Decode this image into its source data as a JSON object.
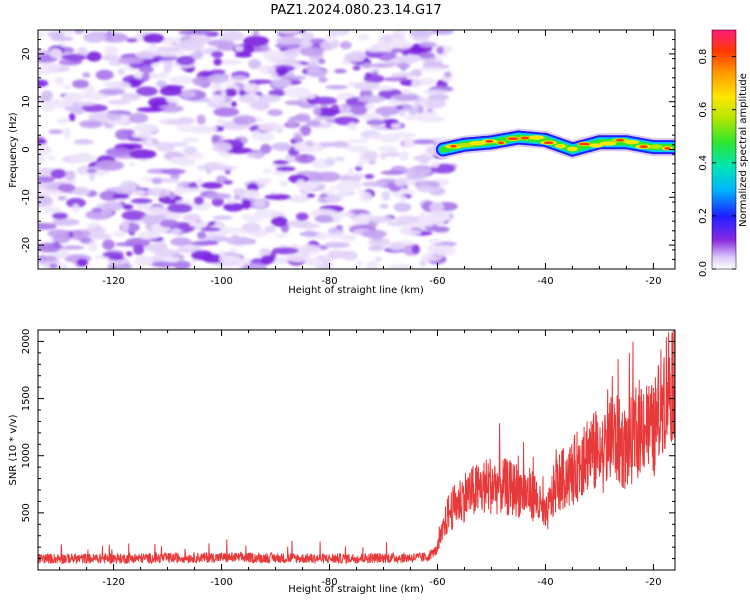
{
  "title": "PAZ1.2024.080.23.14.G17",
  "chart_data": [
    {
      "type": "heatmap",
      "xlabel": "Height of straight line (km)",
      "ylabel": "Frequency (Hz)",
      "xlim": [
        -134,
        -16
      ],
      "ylim": [
        -25,
        25
      ],
      "xticks": [
        -120,
        -100,
        -80,
        -60,
        -40,
        -20
      ],
      "yticks": [
        -20,
        -10,
        0,
        10,
        20
      ],
      "colorbar": {
        "label": "Normalized spectral amplitude",
        "range": [
          0.0,
          0.9
        ],
        "ticks": [
          0.0,
          0.2,
          0.4,
          0.6,
          0.8
        ]
      },
      "signal_track": {
        "description_points_x": [
          -59,
          -55,
          -50,
          -45,
          -40,
          -35,
          -30,
          -25,
          -20,
          -16
        ],
        "center_freq": [
          0,
          1,
          1.5,
          2.5,
          2,
          0,
          1.5,
          1.5,
          0.5,
          0.5
        ]
      },
      "noise_region_x": [
        -134,
        -59
      ]
    },
    {
      "type": "line",
      "xlabel": "Height of straight line (km)",
      "ylabel": "SNR (10 * v/v)",
      "xlim": [
        -134,
        -16
      ],
      "ylim": [
        0,
        2100
      ],
      "xticks": [
        -120,
        -100,
        -80,
        -60,
        -40,
        -20
      ],
      "yticks": [
        500,
        1000,
        1500,
        2000
      ],
      "color": "#e8393a",
      "envelope": {
        "x": [
          -134,
          -120,
          -100,
          -80,
          -62,
          -60,
          -58,
          -55,
          -50,
          -45,
          -42,
          -40,
          -38,
          -35,
          -32,
          -30,
          -27,
          -25,
          -22,
          -20,
          -18,
          -16
        ],
        "y": [
          100,
          100,
          110,
          100,
          110,
          180,
          500,
          650,
          750,
          700,
          650,
          450,
          750,
          850,
          1050,
          1000,
          1150,
          1050,
          1300,
          1200,
          1550,
          1750
        ]
      }
    }
  ]
}
